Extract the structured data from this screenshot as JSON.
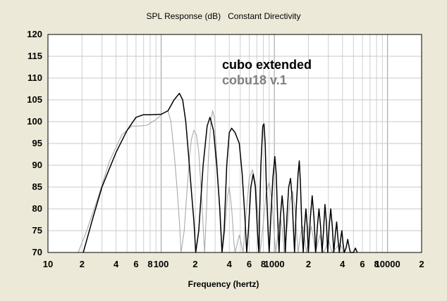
{
  "chart_data": {
    "type": "line",
    "title": "SPL Response (dB)   Constant Directivity",
    "xlabel": "Frequency (hertz)",
    "ylabel": "",
    "x_scale": "log",
    "xlim": [
      10,
      20000
    ],
    "ylim": [
      70,
      120
    ],
    "grid": true,
    "legend_position": "top-center",
    "y_ticks": [
      "120",
      "115",
      "110",
      "105",
      "100",
      "95",
      "90",
      "85",
      "80",
      "75",
      "70"
    ],
    "x_ticks": [
      {
        "value": 10,
        "label": "10"
      },
      {
        "value": 20,
        "label": "2"
      },
      {
        "value": 40,
        "label": "4"
      },
      {
        "value": 60,
        "label": "6"
      },
      {
        "value": 80,
        "label": "8"
      },
      {
        "value": 100,
        "label": "100"
      },
      {
        "value": 200,
        "label": "2"
      },
      {
        "value": 400,
        "label": "4"
      },
      {
        "value": 600,
        "label": "6"
      },
      {
        "value": 800,
        "label": "8"
      },
      {
        "value": 1000,
        "label": "1000"
      },
      {
        "value": 2000,
        "label": "2"
      },
      {
        "value": 4000,
        "label": "4"
      },
      {
        "value": 6000,
        "label": "6"
      },
      {
        "value": 8000,
        "label": "8"
      },
      {
        "value": 10000,
        "label": "10000"
      },
      {
        "value": 20000,
        "label": "2"
      }
    ],
    "series": [
      {
        "name": "cubo extended",
        "color": "#000000",
        "points": [
          [
            20.5,
            70
          ],
          [
            25,
            78
          ],
          [
            30,
            85
          ],
          [
            40,
            93
          ],
          [
            50,
            98
          ],
          [
            60,
            101
          ],
          [
            70,
            101.6
          ],
          [
            80,
            101.6
          ],
          [
            100,
            101.7
          ],
          [
            115,
            102.5
          ],
          [
            130,
            105
          ],
          [
            145,
            106.5
          ],
          [
            155,
            105
          ],
          [
            165,
            100
          ],
          [
            175,
            92
          ],
          [
            185,
            84
          ],
          [
            195,
            77
          ],
          [
            202,
            70
          ],
          [
            215,
            75
          ],
          [
            235,
            90
          ],
          [
            255,
            99
          ],
          [
            270,
            101
          ],
          [
            290,
            98
          ],
          [
            310,
            90
          ],
          [
            330,
            80
          ],
          [
            345,
            70
          ],
          [
            360,
            75
          ],
          [
            380,
            90
          ],
          [
            400,
            97.5
          ],
          [
            420,
            98.5
          ],
          [
            450,
            97.5
          ],
          [
            490,
            95
          ],
          [
            520,
            88
          ],
          [
            550,
            78
          ],
          [
            570,
            70
          ],
          [
            590,
            75
          ],
          [
            620,
            85
          ],
          [
            650,
            88
          ],
          [
            680,
            85
          ],
          [
            700,
            78
          ],
          [
            720,
            72
          ],
          [
            730,
            70
          ],
          [
            740,
            78
          ],
          [
            760,
            90
          ],
          [
            790,
            99
          ],
          [
            810,
            99.5
          ],
          [
            830,
            95
          ],
          [
            850,
            85
          ],
          [
            880,
            75
          ],
          [
            900,
            70
          ],
          [
            930,
            78
          ],
          [
            970,
            87
          ],
          [
            1010,
            92
          ],
          [
            1040,
            88
          ],
          [
            1070,
            78
          ],
          [
            1100,
            70
          ],
          [
            1130,
            78
          ],
          [
            1170,
            83
          ],
          [
            1210,
            79
          ],
          [
            1250,
            70
          ],
          [
            1290,
            78
          ],
          [
            1340,
            85
          ],
          [
            1390,
            87
          ],
          [
            1430,
            83
          ],
          [
            1470,
            76
          ],
          [
            1510,
            70
          ],
          [
            1560,
            80
          ],
          [
            1620,
            88
          ],
          [
            1660,
            91
          ],
          [
            1700,
            86
          ],
          [
            1750,
            76
          ],
          [
            1800,
            70
          ],
          [
            1850,
            76
          ],
          [
            1900,
            80
          ],
          [
            1950,
            76
          ],
          [
            2000,
            70
          ],
          [
            2080,
            78
          ],
          [
            2160,
            83
          ],
          [
            2240,
            78
          ],
          [
            2320,
            70
          ],
          [
            2400,
            76
          ],
          [
            2480,
            80
          ],
          [
            2560,
            76
          ],
          [
            2640,
            70
          ],
          [
            2720,
            75
          ],
          [
            2800,
            81
          ],
          [
            2880,
            77
          ],
          [
            2960,
            70
          ],
          [
            3050,
            76
          ],
          [
            3150,
            80
          ],
          [
            3250,
            76
          ],
          [
            3350,
            70
          ],
          [
            3450,
            74
          ],
          [
            3550,
            77
          ],
          [
            3650,
            73
          ],
          [
            3750,
            70
          ],
          [
            3850,
            73
          ],
          [
            3950,
            75
          ],
          [
            4050,
            72
          ],
          [
            4150,
            70
          ],
          [
            4300,
            71
          ],
          [
            4450,
            73
          ],
          [
            4600,
            71
          ],
          [
            4700,
            70
          ],
          [
            5000,
            70
          ],
          [
            5200,
            71
          ],
          [
            5400,
            70
          ]
        ]
      },
      {
        "name": "cobu18 v.1",
        "color": "#aaaaaa",
        "points": [
          [
            18.5,
            70
          ],
          [
            22,
            75
          ],
          [
            28,
            83
          ],
          [
            35,
            91
          ],
          [
            45,
            97
          ],
          [
            55,
            99
          ],
          [
            65,
            99
          ],
          [
            75,
            99.2
          ],
          [
            90,
            100.5
          ],
          [
            105,
            102
          ],
          [
            115,
            102.5
          ],
          [
            122,
            100
          ],
          [
            130,
            93
          ],
          [
            138,
            85
          ],
          [
            145,
            77
          ],
          [
            150,
            70
          ],
          [
            160,
            75
          ],
          [
            170,
            85
          ],
          [
            178,
            92
          ],
          [
            185,
            96
          ],
          [
            195,
            98
          ],
          [
            205,
            97
          ],
          [
            215,
            93
          ],
          [
            225,
            85
          ],
          [
            235,
            76
          ],
          [
            242,
            70
          ],
          [
            250,
            78
          ],
          [
            262,
            92
          ],
          [
            275,
            100
          ],
          [
            285,
            102.5
          ],
          [
            295,
            101
          ],
          [
            305,
            95
          ],
          [
            320,
            85
          ],
          [
            335,
            75
          ],
          [
            345,
            70
          ],
          [
            365,
            75
          ],
          [
            385,
            83
          ],
          [
            400,
            85
          ],
          [
            420,
            80
          ],
          [
            440,
            72
          ],
          [
            450,
            70
          ],
          [
            470,
            72
          ],
          [
            490,
            74
          ],
          [
            510,
            72
          ],
          [
            530,
            70
          ],
          [
            560,
            78
          ],
          [
            600,
            87
          ],
          [
            640,
            89
          ],
          [
            680,
            86
          ],
          [
            720,
            78
          ],
          [
            750,
            70
          ],
          [
            800,
            77
          ],
          [
            850,
            84
          ],
          [
            900,
            86
          ],
          [
            950,
            82
          ],
          [
            1000,
            74
          ],
          [
            1030,
            70
          ],
          [
            1080,
            75
          ],
          [
            1130,
            78
          ],
          [
            1180,
            75
          ],
          [
            1220,
            70
          ],
          [
            1300,
            76
          ],
          [
            1380,
            82
          ],
          [
            1450,
            84
          ],
          [
            1520,
            80
          ],
          [
            1580,
            74
          ],
          [
            1620,
            70
          ],
          [
            1700,
            74
          ],
          [
            1780,
            76
          ],
          [
            1860,
            73
          ],
          [
            1920,
            70
          ],
          [
            2020,
            73
          ],
          [
            2120,
            76
          ],
          [
            2220,
            73
          ],
          [
            2300,
            70
          ],
          [
            2420,
            72
          ],
          [
            2520,
            74
          ],
          [
            2620,
            72
          ],
          [
            2700,
            70
          ],
          [
            2850,
            71
          ],
          [
            3000,
            73
          ],
          [
            3150,
            71
          ],
          [
            3250,
            70
          ],
          [
            3500,
            71
          ],
          [
            3800,
            72
          ],
          [
            4100,
            70
          ]
        ]
      }
    ]
  }
}
